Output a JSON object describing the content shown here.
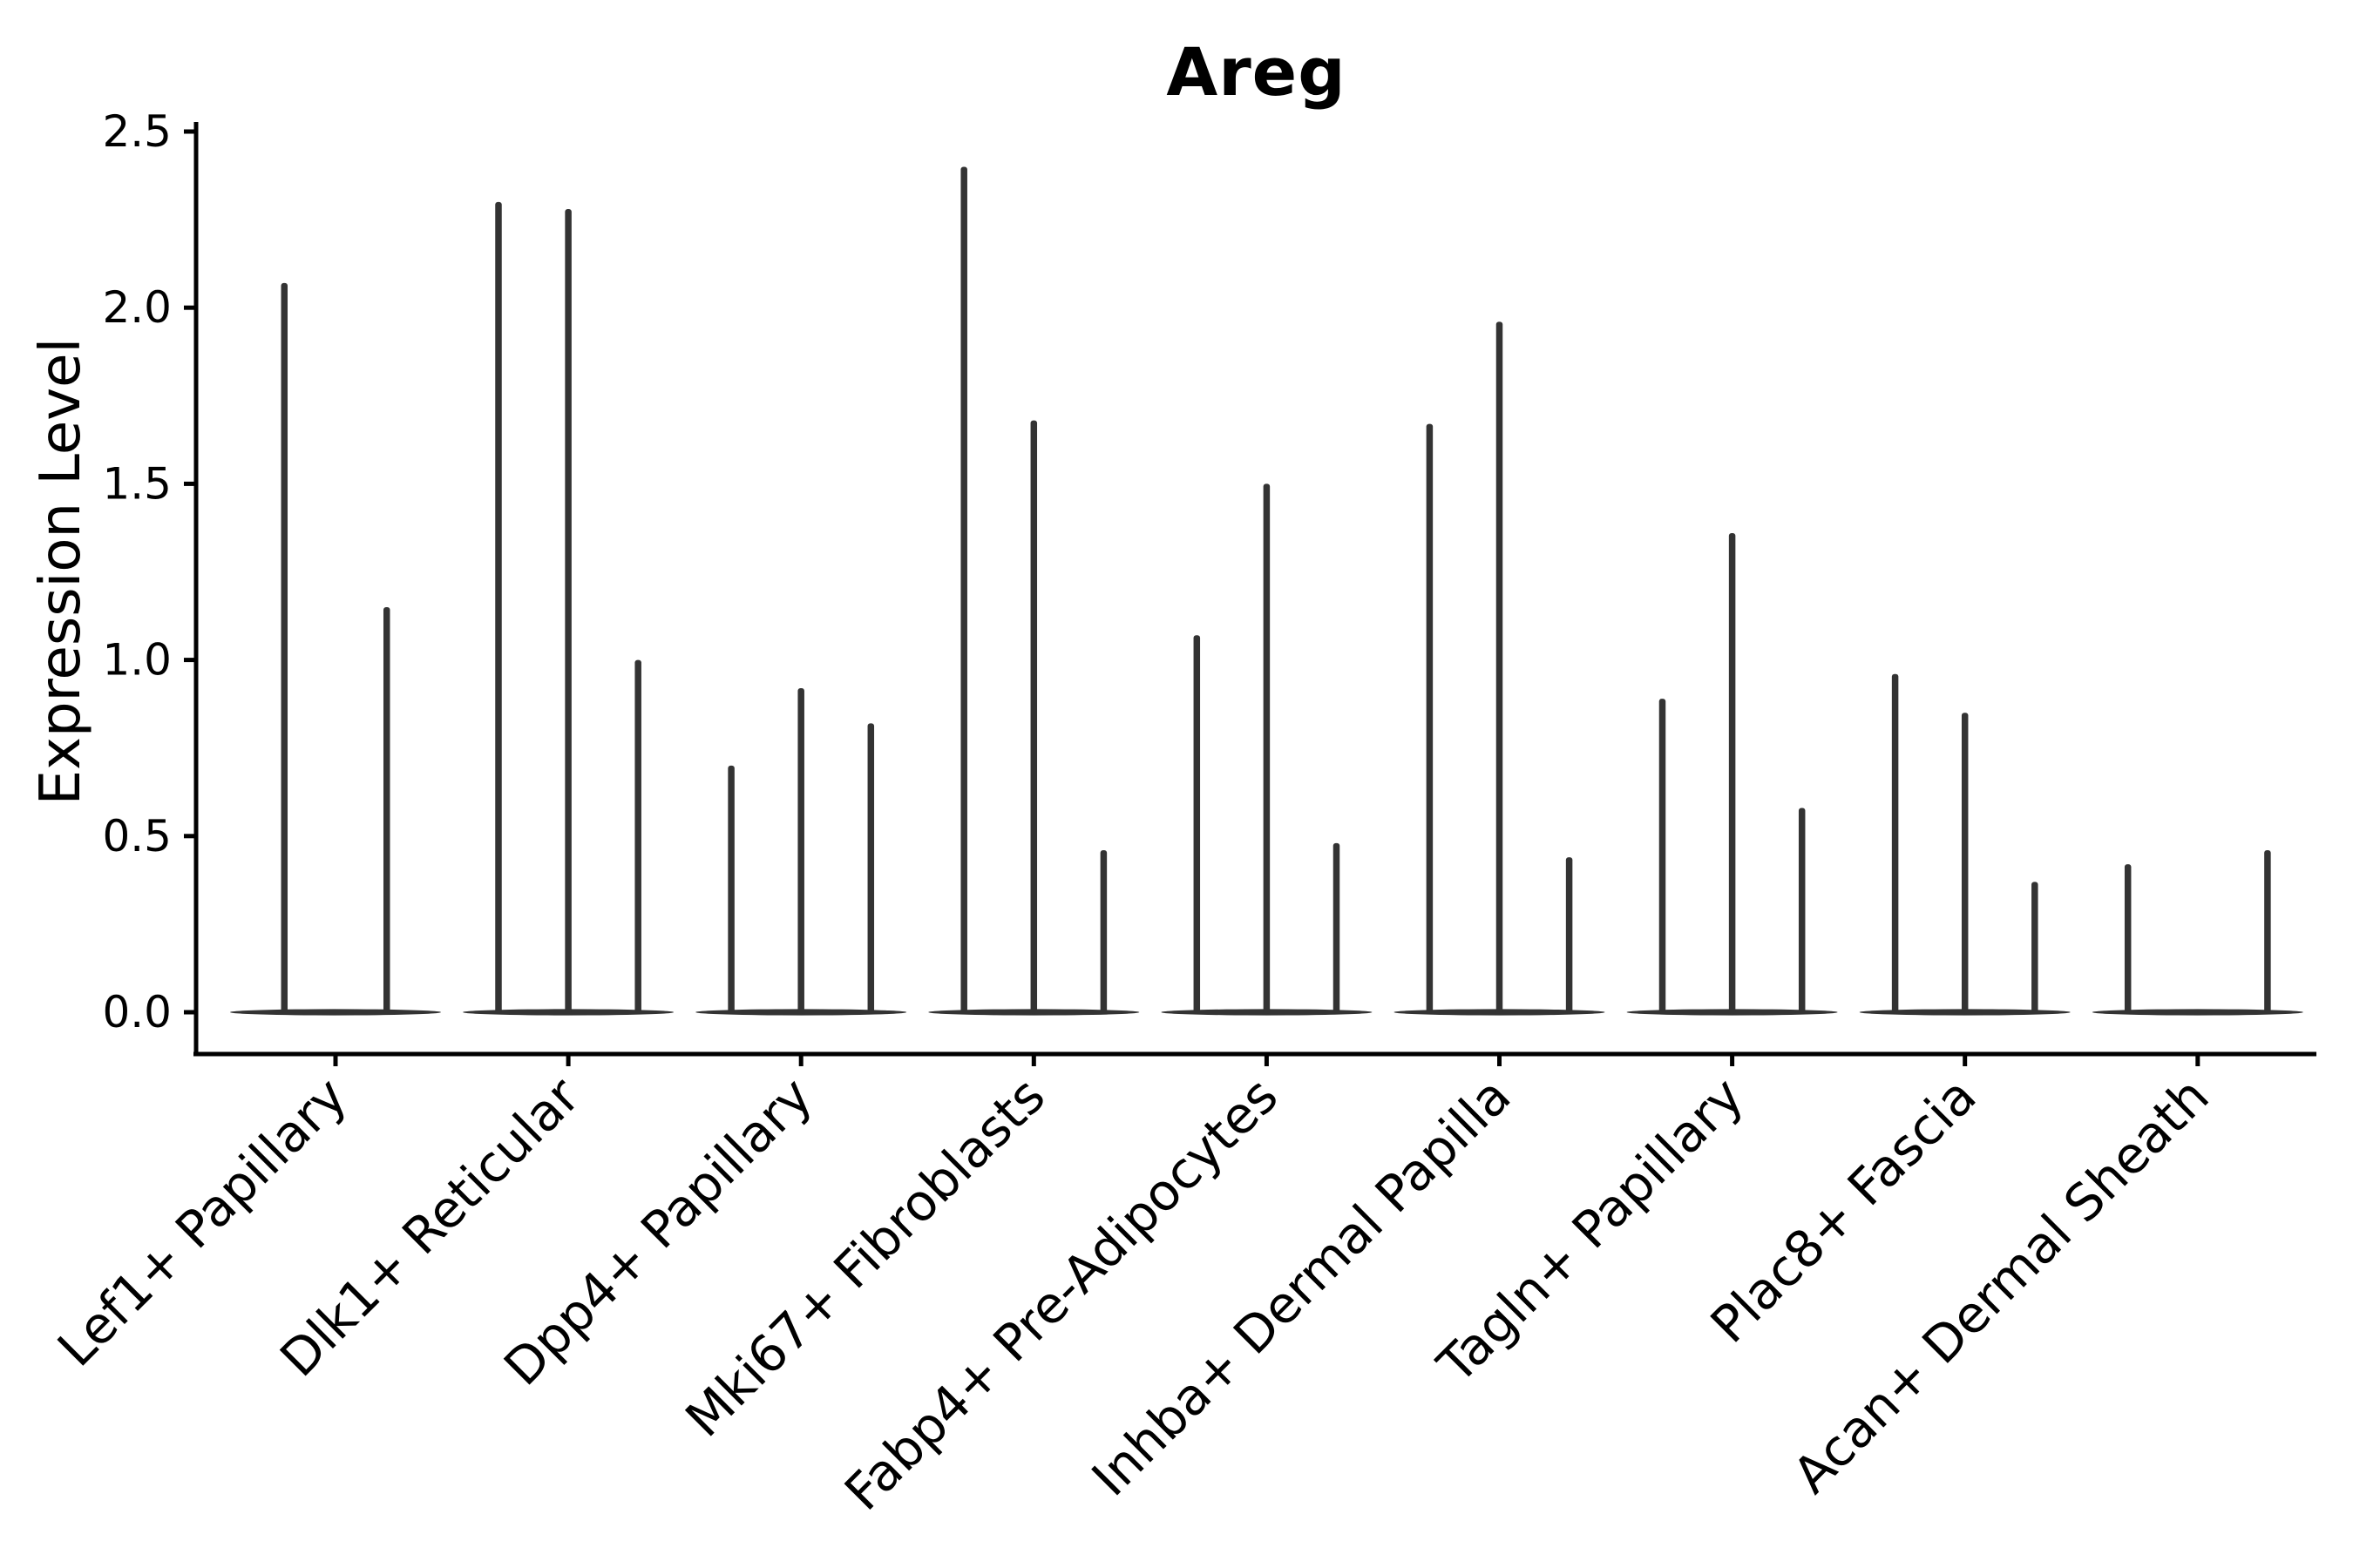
{
  "chart_data": {
    "type": "violin",
    "title": "Areg",
    "xlabel": "",
    "ylabel": "Expression Level",
    "ylim": [
      0,
      2.5
    ],
    "yticks": [
      0.0,
      0.5,
      1.0,
      1.5,
      2.0,
      2.5
    ],
    "ytick_labels": [
      "0.0",
      "0.5",
      "1.0",
      "1.5",
      "2.0",
      "2.5"
    ],
    "grid": false,
    "legend": null,
    "x_tick_rotation_deg": 45,
    "categories": [
      "Lef1+ Papillary",
      "Dlk1+ Reticular",
      "Dpp4+ Papillary",
      "Mki67+ Fibroblasts",
      "Fabp4+ Pre-Adipocytes",
      "Inhba+ Dermal Papilla",
      "Tagln+ Papillary",
      "Plac8+ Fascia",
      "Acan+ Dermal Sheath"
    ],
    "violins": [
      {
        "category": "Lef1+ Papillary",
        "spikes": [
          {
            "offset": -0.22,
            "max": 2.07
          },
          {
            "offset": 0.22,
            "max": 1.15
          }
        ]
      },
      {
        "category": "Dlk1+ Reticular",
        "spikes": [
          {
            "offset": -0.3,
            "max": 2.3
          },
          {
            "offset": 0.0,
            "max": 2.28
          },
          {
            "offset": 0.3,
            "max": 1.0
          }
        ]
      },
      {
        "category": "Dpp4+ Papillary",
        "spikes": [
          {
            "offset": -0.3,
            "max": 0.7
          },
          {
            "offset": 0.0,
            "max": 0.92
          },
          {
            "offset": 0.3,
            "max": 0.82
          }
        ]
      },
      {
        "category": "Mki67+ Fibroblasts",
        "spikes": [
          {
            "offset": -0.3,
            "max": 2.4
          },
          {
            "offset": 0.0,
            "max": 1.68
          },
          {
            "offset": 0.3,
            "max": 0.46
          }
        ]
      },
      {
        "category": "Fabp4+ Pre-Adipocytes",
        "spikes": [
          {
            "offset": -0.3,
            "max": 1.07
          },
          {
            "offset": 0.0,
            "max": 1.5
          },
          {
            "offset": 0.3,
            "max": 0.48
          }
        ]
      },
      {
        "category": "Inhba+ Dermal Papilla",
        "spikes": [
          {
            "offset": -0.3,
            "max": 1.67
          },
          {
            "offset": 0.0,
            "max": 1.96
          },
          {
            "offset": 0.3,
            "max": 0.44
          }
        ]
      },
      {
        "category": "Tagln+ Papillary",
        "spikes": [
          {
            "offset": -0.3,
            "max": 0.89
          },
          {
            "offset": 0.0,
            "max": 1.36
          },
          {
            "offset": 0.3,
            "max": 0.58
          }
        ]
      },
      {
        "category": "Plac8+ Fascia",
        "spikes": [
          {
            "offset": -0.3,
            "max": 0.96
          },
          {
            "offset": 0.0,
            "max": 0.85
          },
          {
            "offset": 0.3,
            "max": 0.37
          }
        ]
      },
      {
        "category": "Acan+ Dermal Sheath",
        "spikes": [
          {
            "offset": -0.3,
            "max": 0.42
          },
          {
            "offset": 0.3,
            "max": 0.46
          }
        ]
      }
    ]
  },
  "colors": {
    "background": "#ffffff",
    "violin": "#333333",
    "axis": "#000000",
    "text": "#000000"
  }
}
